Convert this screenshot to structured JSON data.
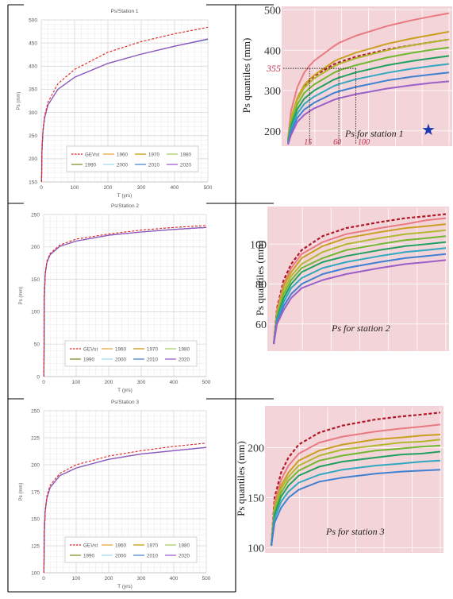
{
  "colors": {
    "GEVst": "#e02020",
    "1960": "#e0a030",
    "1970": "#c89000",
    "1980": "#9ccc5a",
    "1990": "#6f8c1e",
    "2000": "#9ed8f0",
    "2010": "#3f7fd0",
    "2020": "#9b4fc9",
    "rightBg": "#f3d4d8",
    "rightGrid": "#ffffff",
    "rightDash": "#b01828",
    "rightLine0": "#e87a82",
    "rightLine1": "#c8a020",
    "rightLine2": "#b0b830",
    "rightLine3": "#70b830",
    "rightLine4": "#20a060",
    "rightLine5": "#30a8c0",
    "rightLine6": "#4080d0",
    "rightLine7": "#9a60c8",
    "star": "#1a3ab0",
    "annot": "#c0304a"
  },
  "chart_data": [
    {
      "type": "line",
      "title": "Ps/Station 1",
      "xlabel": "T (yrs)",
      "ylabel": "Ps (mm)",
      "xlim": [
        0,
        500
      ],
      "ylim": [
        150,
        500
      ],
      "xticks": [
        0,
        100,
        200,
        300,
        400,
        500
      ],
      "yticks": [
        150,
        200,
        250,
        300,
        350,
        400,
        450,
        500
      ],
      "grid": true,
      "legend_position": "bottom-right",
      "legend": [
        "GEVst",
        "1960",
        "1970",
        "1980",
        "1990",
        "2000",
        "2010",
        "2020"
      ],
      "x": [
        1,
        2,
        5,
        10,
        20,
        50,
        100,
        200,
        300,
        400,
        500
      ],
      "series": [
        {
          "name": "GEVst",
          "dashed": true,
          "values": [
            150,
            215,
            262,
            292,
            322,
            362,
            393,
            430,
            453,
            470,
            484
          ]
        },
        {
          "name": "1960",
          "values": [
            150,
            212,
            258,
            288,
            316,
            350,
            376,
            406,
            426,
            443,
            458
          ]
        },
        {
          "name": "1970",
          "values": [
            150,
            212,
            258,
            288,
            316,
            350,
            376,
            406,
            426,
            443,
            458
          ]
        },
        {
          "name": "1980",
          "values": [
            150,
            212,
            258,
            288,
            316,
            350,
            376,
            406,
            426,
            443,
            458
          ]
        },
        {
          "name": "1990",
          "values": [
            150,
            212,
            258,
            288,
            316,
            350,
            376,
            406,
            426,
            443,
            458
          ]
        },
        {
          "name": "2000",
          "values": [
            150,
            212,
            258,
            288,
            316,
            350,
            376,
            406,
            426,
            443,
            458
          ]
        },
        {
          "name": "2010",
          "values": [
            150,
            212,
            258,
            288,
            316,
            350,
            376,
            406,
            426,
            443,
            458
          ]
        },
        {
          "name": "2020",
          "values": [
            150,
            212,
            258,
            288,
            316,
            350,
            376,
            406,
            426,
            443,
            459
          ]
        }
      ]
    },
    {
      "type": "line",
      "title": "Ps quantiles (mm)",
      "annotation": "Ps for station 1",
      "xlabel": "",
      "ylabel": "Ps quantiles (mm)",
      "ylim": [
        170,
        505
      ],
      "yticks": [
        200,
        300,
        400,
        500
      ],
      "x_annotations": [
        "15",
        "60",
        "100"
      ],
      "y_annotations": [
        "355"
      ],
      "grid": true,
      "x": [
        1,
        2,
        5,
        10,
        15,
        20,
        50,
        60,
        100,
        200,
        300,
        400,
        500
      ],
      "series": [
        {
          "dashed": true,
          "values": [
            178,
            230,
            280,
            312,
            326,
            336,
            365,
            370,
            384,
            402,
            412,
            420,
            427
          ]
        },
        {
          "values": [
            180,
            250,
            308,
            345,
            362,
            374,
            410,
            418,
            436,
            460,
            474,
            484,
            492
          ]
        },
        {
          "values": [
            178,
            232,
            282,
            314,
            328,
            338,
            372,
            378,
            394,
            416,
            429,
            438,
            446
          ]
        },
        {
          "values": [
            176,
            228,
            276,
            307,
            320,
            330,
            360,
            366,
            380,
            400,
            412,
            420,
            427
          ]
        },
        {
          "values": [
            174,
            220,
            265,
            294,
            306,
            315,
            344,
            350,
            363,
            382,
            393,
            401,
            407
          ]
        },
        {
          "values": [
            172,
            212,
            254,
            280,
            291,
            300,
            327,
            332,
            345,
            363,
            373,
            380,
            386
          ]
        },
        {
          "values": [
            170,
            205,
            243,
            267,
            277,
            285,
            311,
            316,
            328,
            344,
            354,
            361,
            366
          ]
        },
        {
          "values": [
            168,
            198,
            232,
            253,
            262,
            270,
            294,
            298,
            309,
            325,
            334,
            340,
            345
          ]
        },
        {
          "values": [
            166,
            190,
            222,
            240,
            249,
            256,
            277,
            281,
            291,
            305,
            313,
            319,
            323
          ]
        }
      ]
    },
    {
      "type": "line",
      "title": "Ps/Station 2",
      "xlabel": "T (yrs)",
      "ylabel": "Ps (mm)",
      "xlim": [
        0,
        500
      ],
      "ylim": [
        0,
        250
      ],
      "xticks": [
        0,
        100,
        200,
        300,
        400,
        500
      ],
      "yticks": [
        0,
        50,
        100,
        150,
        200,
        250
      ],
      "grid": true,
      "legend_position": "bottom-right",
      "legend": [
        "GEVst",
        "1960",
        "1970",
        "1980",
        "1990",
        "2000",
        "2010",
        "2020"
      ],
      "x": [
        1,
        2,
        5,
        10,
        20,
        50,
        100,
        200,
        300,
        400,
        500
      ],
      "series": [
        {
          "name": "GEVst",
          "dashed": true,
          "values": [
            0,
            120,
            160,
            178,
            190,
            203,
            212,
            220,
            226,
            230,
            233
          ]
        },
        {
          "name": "1960",
          "values": [
            0,
            118,
            158,
            176,
            188,
            201,
            209,
            218,
            223,
            227,
            230
          ]
        },
        {
          "name": "1970",
          "values": [
            0,
            118,
            158,
            176,
            188,
            201,
            209,
            218,
            223,
            227,
            230
          ]
        },
        {
          "name": "1980",
          "values": [
            0,
            118,
            158,
            176,
            188,
            201,
            209,
            218,
            223,
            227,
            230
          ]
        },
        {
          "name": "1990",
          "values": [
            0,
            118,
            158,
            176,
            188,
            201,
            209,
            218,
            223,
            227,
            230
          ]
        },
        {
          "name": "2000",
          "values": [
            0,
            118,
            158,
            176,
            188,
            201,
            209,
            218,
            223,
            227,
            230
          ]
        },
        {
          "name": "2010",
          "values": [
            0,
            118,
            158,
            176,
            188,
            201,
            209,
            218,
            223,
            227,
            230
          ]
        },
        {
          "name": "2020",
          "values": [
            0,
            118,
            158,
            176,
            188,
            201,
            209,
            218,
            223,
            227,
            230
          ]
        }
      ]
    },
    {
      "type": "line",
      "title": "Ps quantiles (mm)",
      "annotation": "Ps for station 2",
      "xlabel": "",
      "ylabel": "Ps quantiles (mm)",
      "ylim": [
        48,
        118
      ],
      "yticks": [
        60,
        80,
        100
      ],
      "grid": true,
      "x": [
        1,
        2,
        5,
        10,
        20,
        50,
        100,
        200,
        300,
        400,
        500
      ],
      "series": [
        {
          "dashed": true,
          "values": [
            50,
            68,
            82,
            90,
            97,
            104,
            108,
            111,
            113,
            114,
            115
          ]
        },
        {
          "values": [
            50,
            67,
            80,
            88,
            95,
            101,
            105,
            108,
            110,
            112,
            113
          ]
        },
        {
          "values": [
            50,
            66,
            79,
            86,
            93,
            99,
            103,
            106,
            108,
            109,
            110
          ]
        },
        {
          "values": [
            50,
            65,
            77,
            84,
            90,
            96,
            100,
            103,
            105,
            106,
            107
          ]
        },
        {
          "values": [
            50,
            64,
            75,
            82,
            88,
            93,
            97,
            100,
            102,
            103,
            104
          ]
        },
        {
          "values": [
            50,
            63,
            73,
            80,
            86,
            91,
            94,
            97,
            99,
            100,
            101
          ]
        },
        {
          "values": [
            50,
            62,
            71,
            78,
            83,
            88,
            91,
            94,
            96,
            97,
            98
          ]
        },
        {
          "values": [
            50,
            61,
            69,
            75,
            80,
            85,
            88,
            91,
            93,
            94,
            95
          ]
        },
        {
          "values": [
            50,
            60,
            67,
            73,
            78,
            82,
            85,
            88,
            90,
            91,
            92
          ]
        }
      ]
    },
    {
      "type": "line",
      "title": "Ps/Station 3",
      "xlabel": "T (yrs)",
      "ylabel": "Ps (mm)",
      "xlim": [
        0,
        500
      ],
      "ylim": [
        100,
        250
      ],
      "xticks": [
        0,
        100,
        200,
        300,
        400,
        500
      ],
      "yticks": [
        100,
        125,
        150,
        175,
        200,
        225,
        250
      ],
      "grid": true,
      "legend_position": "bottom-right",
      "legend": [
        "GEVst",
        "1960",
        "1970",
        "1980",
        "1990",
        "2000",
        "2010",
        "2020"
      ],
      "x": [
        1,
        2,
        5,
        10,
        20,
        50,
        100,
        200,
        300,
        400,
        500
      ],
      "series": [
        {
          "name": "GEVst",
          "dashed": true,
          "values": [
            100,
            137,
            158,
            171,
            181,
            192,
            200,
            208,
            213,
            217,
            220
          ]
        },
        {
          "name": "1960",
          "values": [
            100,
            136,
            157,
            169,
            179,
            190,
            197,
            205,
            210,
            213,
            216
          ]
        },
        {
          "name": "1970",
          "values": [
            100,
            136,
            157,
            169,
            179,
            190,
            197,
            205,
            210,
            213,
            216
          ]
        },
        {
          "name": "1980",
          "values": [
            100,
            136,
            157,
            169,
            179,
            190,
            197,
            205,
            210,
            213,
            216
          ]
        },
        {
          "name": "1990",
          "values": [
            100,
            136,
            157,
            169,
            179,
            190,
            197,
            205,
            210,
            213,
            216
          ]
        },
        {
          "name": "2000",
          "values": [
            100,
            136,
            157,
            169,
            179,
            190,
            197,
            205,
            210,
            213,
            216
          ]
        },
        {
          "name": "2010",
          "values": [
            100,
            136,
            157,
            169,
            179,
            190,
            197,
            205,
            210,
            213,
            216
          ]
        },
        {
          "name": "2020",
          "values": [
            100,
            136,
            157,
            169,
            179,
            190,
            197,
            205,
            210,
            213,
            216
          ]
        }
      ]
    },
    {
      "type": "line",
      "title": "Ps quantiles (mm)",
      "annotation": "Ps for station 3",
      "xlabel": "",
      "ylabel": "Ps quantiles (mm)",
      "ylim": [
        98,
        240
      ],
      "yticks": [
        100,
        150,
        200
      ],
      "grid": true,
      "x": [
        1,
        2,
        5,
        10,
        20,
        50,
        100,
        200,
        300,
        400,
        500
      ],
      "series": [
        {
          "dashed": true,
          "values": [
            102,
            150,
            175,
            190,
            203,
            215,
            222,
            228,
            231,
            233,
            235
          ]
        },
        {
          "values": [
            102,
            145,
            168,
            182,
            194,
            205,
            211,
            216,
            219,
            221,
            223
          ]
        },
        {
          "values": [
            102,
            141,
            162,
            175,
            187,
            197,
            203,
            208,
            210,
            212,
            213
          ]
        },
        {
          "values": [
            102,
            139,
            159,
            171,
            182,
            192,
            198,
            202,
            205,
            206,
            208
          ]
        },
        {
          "values": [
            102,
            136,
            155,
            167,
            177,
            187,
            192,
            197,
            199,
            201,
            202
          ]
        },
        {
          "values": [
            102,
            133,
            151,
            162,
            172,
            181,
            186,
            190,
            193,
            194,
            196
          ]
        },
        {
          "values": [
            102,
            129,
            146,
            156,
            165,
            173,
            178,
            182,
            184,
            186,
            187
          ]
        },
        {
          "values": [
            102,
            125,
            140,
            150,
            158,
            166,
            170,
            174,
            176,
            177,
            178
          ]
        }
      ]
    }
  ]
}
